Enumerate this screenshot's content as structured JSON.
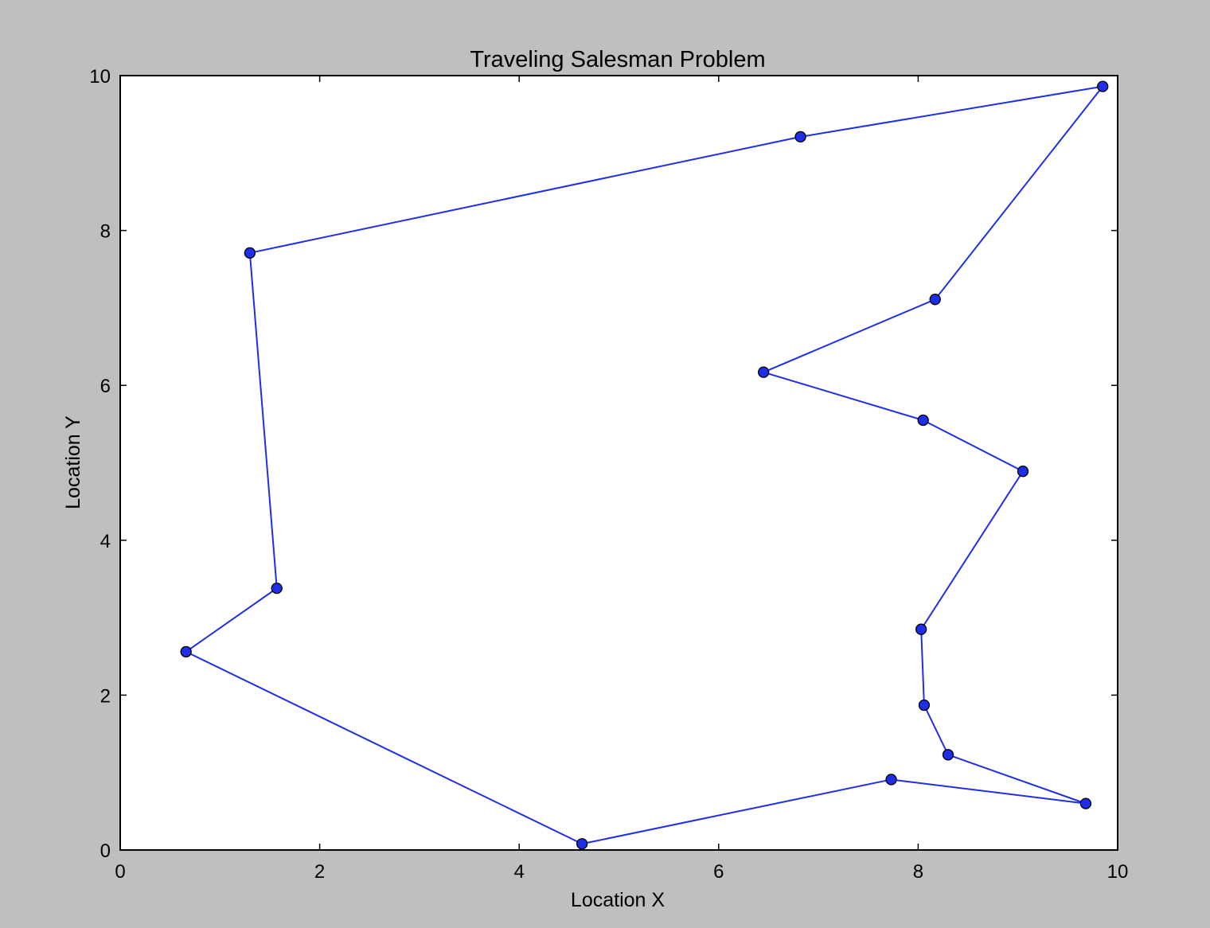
{
  "chart_data": {
    "type": "line",
    "title": "Traveling Salesman Problem",
    "xlabel": "Location X",
    "ylabel": "Location Y",
    "xlim": [
      0,
      10
    ],
    "ylim": [
      0,
      10
    ],
    "xticks": [
      "0",
      "2",
      "4",
      "6",
      "8",
      "10"
    ],
    "yticks": [
      "0",
      "2",
      "4",
      "6",
      "8",
      "10"
    ],
    "grid": false,
    "line_color": "#1f2ee8",
    "marker_color": "#1f2ee8",
    "series": [
      {
        "x": [
          6.82,
          9.85,
          8.17,
          6.45,
          8.05,
          9.05,
          8.03,
          8.06,
          8.3,
          9.68,
          7.73,
          4.63,
          0.66,
          1.57,
          1.3
        ],
        "y": [
          9.21,
          9.86,
          7.11,
          6.17,
          5.55,
          4.89,
          2.85,
          1.87,
          1.23,
          0.6,
          0.91,
          0.08,
          2.56,
          3.38,
          7.71
        ]
      }
    ]
  }
}
